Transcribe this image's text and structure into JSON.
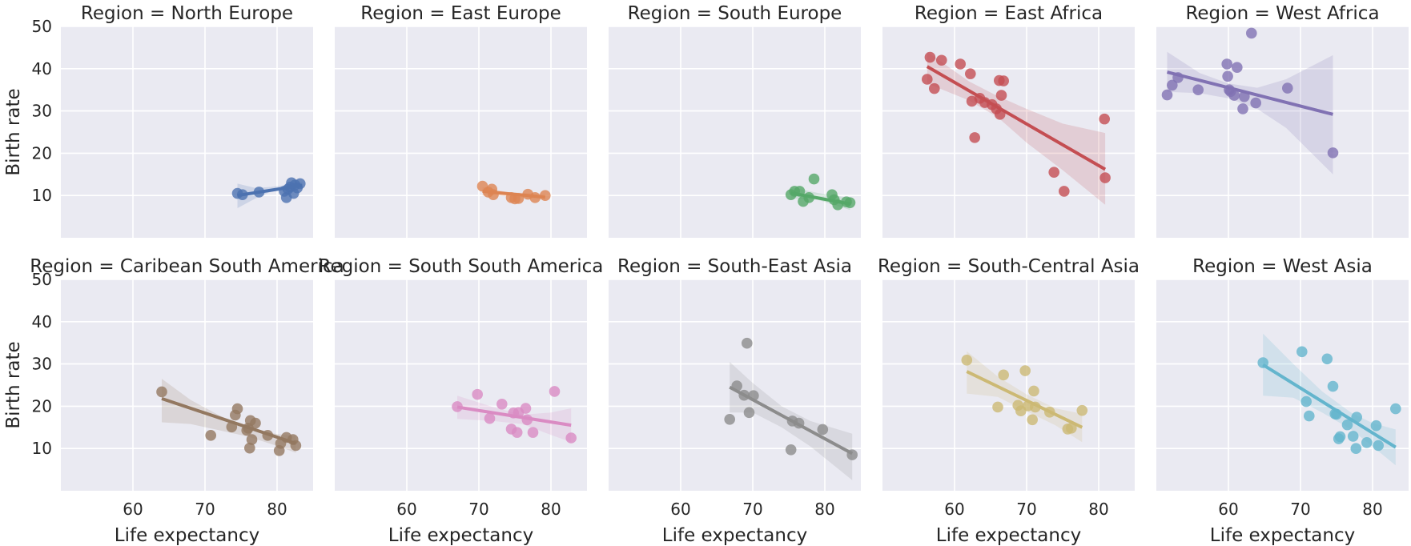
{
  "chart_data": {
    "type": "scatter",
    "xlabel": "Life expectancy",
    "ylabel": "Birth rate",
    "xlim": [
      50,
      85
    ],
    "ylim": [
      0,
      50
    ],
    "xticks": [
      60,
      70,
      80
    ],
    "yticks": [
      10,
      20,
      30,
      40,
      50
    ],
    "grid": true,
    "panels": [
      {
        "title": "Region = North Europe",
        "color": "#4c72b0",
        "points": [
          [
            74.5,
            10.5
          ],
          [
            75.2,
            10.2
          ],
          [
            77.5,
            10.8
          ],
          [
            81,
            11
          ],
          [
            81.3,
            9.5
          ],
          [
            81.8,
            12
          ],
          [
            82,
            13
          ],
          [
            82.3,
            10.5
          ],
          [
            82.5,
            12.5
          ],
          [
            82.8,
            11.8
          ],
          [
            83.2,
            12.8
          ],
          [
            81.5,
            11.5
          ]
        ],
        "fit": [
          [
            74.5,
            10.0
          ],
          [
            83.5,
            12.4
          ]
        ],
        "band": [
          [
            74.5,
            7.0,
            12.8
          ],
          [
            77.0,
            9.3,
            11.8
          ],
          [
            79.0,
            10.8,
            12.0
          ],
          [
            81.0,
            11.5,
            12.4
          ],
          [
            83.5,
            11.8,
            13.2
          ]
        ]
      },
      {
        "title": "Region = East Europe",
        "color": "#dd8452",
        "points": [
          [
            70.5,
            12.2
          ],
          [
            71.3,
            10.8
          ],
          [
            71.8,
            11.5
          ],
          [
            72.0,
            10.2
          ],
          [
            74.5,
            9.5
          ],
          [
            75.0,
            9.2
          ],
          [
            75.5,
            9.3
          ],
          [
            76.8,
            10.3
          ],
          [
            77.8,
            9.5
          ],
          [
            79.2,
            10.0
          ]
        ],
        "fit": [
          [
            70.5,
            11.0
          ],
          [
            79.2,
            9.6
          ]
        ],
        "band": [
          [
            70.5,
            10.0,
            12.0
          ],
          [
            74.0,
            9.8,
            10.8
          ],
          [
            79.2,
            8.9,
            10.4
          ]
        ]
      },
      {
        "title": "Region = South Europe",
        "color": "#55a868",
        "points": [
          [
            75.3,
            10.2
          ],
          [
            75.8,
            11.0
          ],
          [
            76.5,
            11.0
          ],
          [
            77,
            8.6
          ],
          [
            77.8,
            9.5
          ],
          [
            78.5,
            13.9
          ],
          [
            81,
            10.2
          ],
          [
            81.3,
            9.0
          ],
          [
            81.8,
            7.8
          ],
          [
            83,
            8.5
          ],
          [
            83.5,
            8.3
          ]
        ],
        "fit": [
          [
            75.3,
            10.6
          ],
          [
            83.5,
            8.0
          ]
        ],
        "band": [
          [
            75.3,
            9.3,
            12.0
          ],
          [
            79.0,
            9.0,
            10.6
          ],
          [
            83.5,
            6.6,
            9.4
          ]
        ]
      },
      {
        "title": "Region = East Africa",
        "color": "#c44e52",
        "points": [
          [
            56.2,
            37.5
          ],
          [
            56.6,
            42.7
          ],
          [
            57.2,
            35.3
          ],
          [
            58.2,
            42
          ],
          [
            60.8,
            41.1
          ],
          [
            62.2,
            38.8
          ],
          [
            62.4,
            32.3
          ],
          [
            62.8,
            23.7
          ],
          [
            63.5,
            33
          ],
          [
            64.2,
            32
          ],
          [
            65.2,
            31.5
          ],
          [
            65.8,
            30.5
          ],
          [
            66.2,
            37.2
          ],
          [
            66.3,
            29.2
          ],
          [
            66.5,
            33.7
          ],
          [
            66.8,
            37.1
          ],
          [
            73.8,
            15.5
          ],
          [
            75.2,
            11.0
          ],
          [
            80.8,
            28.1
          ],
          [
            80.9,
            14.2
          ]
        ],
        "fit": [
          [
            56.2,
            40.5
          ],
          [
            80.9,
            16.2
          ]
        ],
        "band": [
          [
            56.2,
            36.5,
            44.0
          ],
          [
            62.0,
            32.5,
            37.0
          ],
          [
            66.0,
            28.5,
            33.5
          ],
          [
            70.0,
            22.5,
            30.5
          ],
          [
            75.0,
            16.0,
            27.0
          ],
          [
            80.9,
            7.8,
            24.8
          ]
        ]
      },
      {
        "title": "Region = West Africa",
        "color": "#8172b3",
        "points": [
          [
            51.5,
            33.8
          ],
          [
            52.2,
            36.1
          ],
          [
            53,
            37.9
          ],
          [
            55.8,
            35
          ],
          [
            59.8,
            41.1
          ],
          [
            59.9,
            38.2
          ],
          [
            60.1,
            35
          ],
          [
            60.3,
            34.6
          ],
          [
            60.8,
            33.7
          ],
          [
            61.2,
            40.3
          ],
          [
            62,
            30.5
          ],
          [
            62.2,
            33.4
          ],
          [
            63.2,
            48.4
          ],
          [
            63.8,
            31.9
          ],
          [
            68.2,
            35.4
          ],
          [
            74.5,
            20.1
          ]
        ],
        "fit": [
          [
            51.5,
            39.2
          ],
          [
            74.5,
            29.2
          ]
        ],
        "band": [
          [
            51.5,
            34.5,
            44.0
          ],
          [
            56.0,
            34.2,
            39.0
          ],
          [
            60.0,
            33.0,
            36.5
          ],
          [
            64.0,
            30.5,
            35.5
          ],
          [
            68.0,
            26.0,
            37.5
          ],
          [
            74.5,
            15.0,
            43.2
          ]
        ]
      },
      {
        "title": "Region = Caribean South America",
        "color": "#937860",
        "points": [
          [
            64,
            23.4
          ],
          [
            70.8,
            13.1
          ],
          [
            73.7,
            15.1
          ],
          [
            74.2,
            17.9
          ],
          [
            74.5,
            19.4
          ],
          [
            75.8,
            14.3
          ],
          [
            76.0,
            14.8
          ],
          [
            76.2,
            10.1
          ],
          [
            76.3,
            16.6
          ],
          [
            76.5,
            12.1
          ],
          [
            77.0,
            16.0
          ],
          [
            78.7,
            13.1
          ],
          [
            80.3,
            9.5
          ],
          [
            80.5,
            11.2
          ],
          [
            81.3,
            12.6
          ],
          [
            82.2,
            12.1
          ],
          [
            82.6,
            10.7
          ]
        ],
        "fit": [
          [
            64,
            21.8
          ],
          [
            82.6,
            11.2
          ]
        ],
        "band": [
          [
            64,
            16.2,
            26.5
          ],
          [
            68.0,
            15.8,
            21.5
          ],
          [
            72.0,
            14.3,
            17.8
          ],
          [
            76.0,
            12.8,
            15.0
          ],
          [
            80.0,
            10.6,
            13.4
          ],
          [
            82.6,
            9.0,
            13.0
          ]
        ]
      },
      {
        "title": "Region = South South America",
        "color": "#da8bc3",
        "points": [
          [
            67,
            19.9
          ],
          [
            69.8,
            22.8
          ],
          [
            71.5,
            17.1
          ],
          [
            73.2,
            20.5
          ],
          [
            74.5,
            14.6
          ],
          [
            74.8,
            18.4
          ],
          [
            75.3,
            13.8
          ],
          [
            75.5,
            18.5
          ],
          [
            76.5,
            19.5
          ],
          [
            76.7,
            16.8
          ],
          [
            77.5,
            13.8
          ],
          [
            80.5,
            23.5
          ],
          [
            82.8,
            12.5
          ]
        ],
        "fit": [
          [
            67,
            19.8
          ],
          [
            82.8,
            15.5
          ]
        ],
        "band": [
          [
            67,
            17.0,
            22.5
          ],
          [
            72.0,
            16.5,
            19.8
          ],
          [
            76.0,
            15.8,
            18.0
          ],
          [
            80.0,
            13.2,
            18.5
          ],
          [
            82.8,
            11.5,
            19.5
          ]
        ]
      },
      {
        "title": "Region = South-East Asia",
        "color": "#8c8c8c",
        "points": [
          [
            66.8,
            16.9
          ],
          [
            67.8,
            24.8
          ],
          [
            68.8,
            22.6
          ],
          [
            69.2,
            34.9
          ],
          [
            69.5,
            18.5
          ],
          [
            70.1,
            22.5
          ],
          [
            75.3,
            9.7
          ],
          [
            75.5,
            16.5
          ],
          [
            76.4,
            16
          ],
          [
            79.7,
            14.5
          ],
          [
            83.8,
            8.5
          ]
        ],
        "fit": [
          [
            66.8,
            24.5
          ],
          [
            83.8,
            8.8
          ]
        ],
        "band": [
          [
            66.8,
            18.5,
            30.5
          ],
          [
            70.0,
            18.5,
            25.5
          ],
          [
            74.0,
            15.0,
            20.0
          ],
          [
            78.0,
            10.5,
            16.5
          ],
          [
            83.8,
            2.5,
            13.5
          ]
        ]
      },
      {
        "title": "Region = South-Central Asia",
        "color": "#ccb974",
        "points": [
          [
            61.7,
            30.9
          ],
          [
            66,
            19.8
          ],
          [
            66.8,
            27.4
          ],
          [
            68.8,
            20.2
          ],
          [
            69.2,
            18.9
          ],
          [
            69.8,
            28.4
          ],
          [
            70.2,
            20.1
          ],
          [
            70.8,
            16.8
          ],
          [
            71,
            23.6
          ],
          [
            71.2,
            19.8
          ],
          [
            73.2,
            18.6
          ],
          [
            75.7,
            14.6
          ],
          [
            76.2,
            14.8
          ],
          [
            77.7,
            19
          ]
        ],
        "fit": [
          [
            61.7,
            28.2
          ],
          [
            77.7,
            15.0
          ]
        ],
        "band": [
          [
            61.7,
            23.0,
            33.0
          ],
          [
            66.0,
            22.2,
            27.0
          ],
          [
            70.0,
            18.8,
            22.8
          ],
          [
            74.0,
            15.5,
            19.5
          ],
          [
            77.7,
            11.5,
            18.2
          ]
        ]
      },
      {
        "title": "Region = West Asia",
        "color": "#64b5cd",
        "points": [
          [
            64.8,
            30.3
          ],
          [
            70.2,
            32.9
          ],
          [
            70.8,
            21.1
          ],
          [
            71.2,
            17.7
          ],
          [
            73.7,
            31.2
          ],
          [
            74.5,
            24.7
          ],
          [
            74.8,
            18.2
          ],
          [
            75.0,
            18.1
          ],
          [
            75.3,
            12.3
          ],
          [
            75.5,
            12.8
          ],
          [
            76.5,
            15.6
          ],
          [
            77.3,
            12.9
          ],
          [
            77.7,
            10
          ],
          [
            77.8,
            17.4
          ],
          [
            79.2,
            11.4
          ],
          [
            80.5,
            15.4
          ],
          [
            80.8,
            10.7
          ],
          [
            83.2,
            19.4
          ]
        ],
        "fit": [
          [
            64.8,
            29.8
          ],
          [
            83.2,
            10.3
          ]
        ],
        "band": [
          [
            64.8,
            22.5,
            37.2
          ],
          [
            69.0,
            22.0,
            30.0
          ],
          [
            73.0,
            18.5,
            23.5
          ],
          [
            77.0,
            14.5,
            18.5
          ],
          [
            80.0,
            10.5,
            16.0
          ],
          [
            83.2,
            6.0,
            14.5
          ]
        ]
      }
    ]
  }
}
